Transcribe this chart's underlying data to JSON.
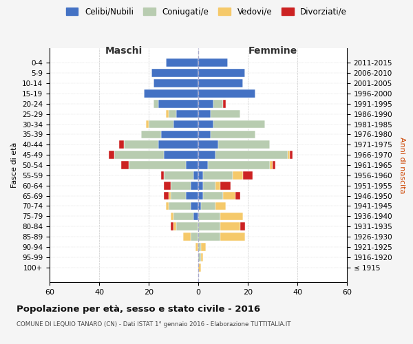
{
  "age_groups": [
    "100+",
    "95-99",
    "90-94",
    "85-89",
    "80-84",
    "75-79",
    "70-74",
    "65-69",
    "60-64",
    "55-59",
    "50-54",
    "45-49",
    "40-44",
    "35-39",
    "30-34",
    "25-29",
    "20-24",
    "15-19",
    "10-14",
    "5-9",
    "0-4"
  ],
  "birth_years": [
    "≤ 1915",
    "1916-1920",
    "1921-1925",
    "1926-1930",
    "1931-1935",
    "1936-1940",
    "1941-1945",
    "1946-1950",
    "1951-1955",
    "1956-1960",
    "1961-1965",
    "1966-1970",
    "1971-1975",
    "1976-1980",
    "1981-1985",
    "1986-1990",
    "1991-1995",
    "1996-2000",
    "2001-2005",
    "2006-2010",
    "2011-2015"
  ],
  "colors": {
    "celibi": "#4472C4",
    "coniugati": "#B8CCB0",
    "vedovi": "#F5C96A",
    "divorziati": "#CC2222"
  },
  "males": {
    "celibi": [
      0,
      0,
      0,
      0,
      0,
      2,
      3,
      5,
      3,
      2,
      5,
      14,
      16,
      15,
      10,
      9,
      16,
      22,
      18,
      19,
      13
    ],
    "coniugati": [
      0,
      0,
      0,
      3,
      9,
      8,
      9,
      6,
      8,
      12,
      23,
      20,
      14,
      8,
      10,
      3,
      2,
      0,
      0,
      0,
      0
    ],
    "vedovi": [
      0,
      0,
      1,
      3,
      1,
      1,
      1,
      1,
      0,
      0,
      0,
      0,
      0,
      0,
      1,
      1,
      0,
      0,
      0,
      0,
      0
    ],
    "divorziati": [
      0,
      0,
      0,
      0,
      1,
      0,
      0,
      2,
      3,
      1,
      3,
      2,
      2,
      0,
      0,
      0,
      0,
      0,
      0,
      0,
      0
    ]
  },
  "females": {
    "nubili": [
      0,
      0,
      0,
      0,
      0,
      0,
      1,
      2,
      2,
      2,
      4,
      7,
      8,
      5,
      6,
      5,
      6,
      23,
      18,
      19,
      12
    ],
    "coniugate": [
      0,
      1,
      1,
      9,
      9,
      9,
      6,
      8,
      5,
      12,
      25,
      29,
      21,
      18,
      21,
      12,
      4,
      0,
      0,
      0,
      0
    ],
    "vedove": [
      1,
      1,
      2,
      10,
      8,
      9,
      4,
      5,
      2,
      4,
      1,
      1,
      0,
      0,
      0,
      0,
      0,
      0,
      0,
      0,
      0
    ],
    "divorziate": [
      0,
      0,
      0,
      0,
      2,
      0,
      0,
      2,
      4,
      4,
      1,
      1,
      0,
      0,
      0,
      0,
      1,
      0,
      0,
      0,
      0
    ]
  },
  "xlim": [
    -60,
    60
  ],
  "xticks": [
    -60,
    -40,
    -20,
    0,
    20,
    40,
    60
  ],
  "xticklabels": [
    "60",
    "40",
    "20",
    "0",
    "20",
    "40",
    "60"
  ],
  "title": "Popolazione per età, sesso e stato civile - 2016",
  "subtitle": "COMUNE DI LEQUIO TANARO (CN) - Dati ISTAT 1° gennaio 2016 - Elaborazione TUTTITALIA.IT",
  "ylabel_left": "Fasce di età",
  "ylabel_right": "Anni di nascita",
  "label_maschi": "Maschi",
  "label_femmine": "Femmine",
  "legend_labels": [
    "Celibi/Nubili",
    "Coniugati/e",
    "Vedovi/e",
    "Divorziati/e"
  ],
  "bg_color": "#f5f5f5",
  "plot_bg": "#ffffff"
}
